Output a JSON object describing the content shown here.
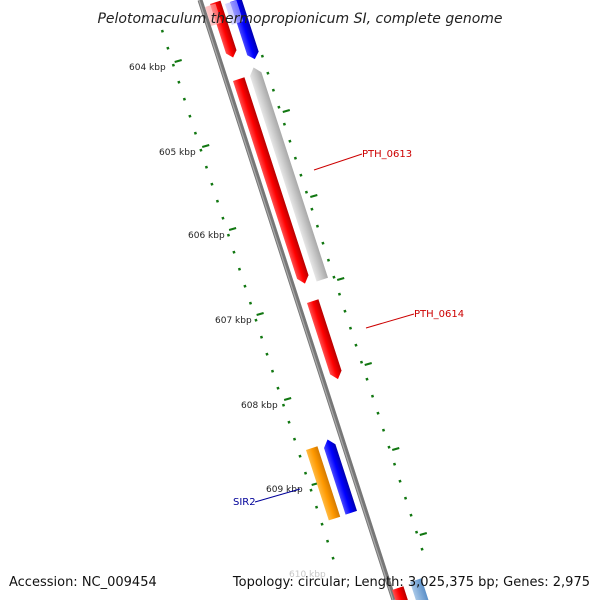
{
  "title": "Pelotomaculum thermopropionicum SI, complete genome",
  "accession": "Accession: NC_009454",
  "topology": "Topology: circular; Length: 3,025,375 bp; Genes: 2,975",
  "ruler": {
    "labels": [
      "604 kbp",
      "605 kbp",
      "606 kbp",
      "607 kbp",
      "608 kbp",
      "609 kbp",
      "610 kbp"
    ]
  },
  "genes": [
    {
      "name": "PTH_0613",
      "color": "#cc0000"
    },
    {
      "name": "PTH_0614",
      "color": "#cc0000"
    },
    {
      "name": "SIR2",
      "color": "#000099"
    }
  ],
  "colors": {
    "red": "#ee0000",
    "blue": "#0000ee",
    "grey": "#c8c8c8",
    "orange": "#ff9900",
    "backbone": "#777777",
    "ruler": "#117711"
  }
}
